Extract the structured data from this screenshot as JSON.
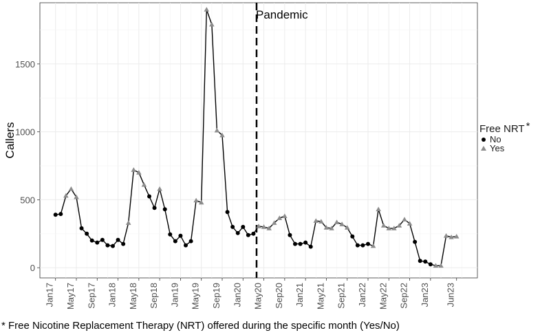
{
  "chart_data": {
    "type": "line",
    "title": "",
    "xlabel": "",
    "ylabel": "Callers",
    "ylim": [
      -75,
      1950
    ],
    "yticks": [
      0,
      500,
      1000,
      1500
    ],
    "x_ticks": [
      "Jan17",
      "May17",
      "Sep17",
      "Jan18",
      "May18",
      "Sep18",
      "Jan19",
      "May19",
      "Sep19",
      "Jan20",
      "May20",
      "Sep20",
      "Jan21",
      "May21",
      "Sep21",
      "Jan22",
      "May22",
      "Sep22",
      "Jan23",
      "Jun23"
    ],
    "x_tick_months": [
      0,
      4,
      8,
      12,
      16,
      20,
      24,
      28,
      32,
      36,
      40,
      44,
      48,
      52,
      56,
      60,
      64,
      68,
      72,
      77
    ],
    "x_range_months": [
      -3,
      81
    ],
    "grid": true,
    "months": [
      "Jan17",
      "Feb17",
      "Mar17",
      "Apr17",
      "May17",
      "Jun17",
      "Jul17",
      "Aug17",
      "Sep17",
      "Oct17",
      "Nov17",
      "Dec17",
      "Jan18",
      "Feb18",
      "Mar18",
      "Apr18",
      "May18",
      "Jun18",
      "Jul18",
      "Aug18",
      "Sep18",
      "Oct18",
      "Nov18",
      "Dec18",
      "Jan19",
      "Feb19",
      "Mar19",
      "Apr19",
      "May19",
      "Jun19",
      "Jul19",
      "Aug19",
      "Sep19",
      "Oct19",
      "Nov19",
      "Dec19",
      "Jan20",
      "Feb20",
      "Mar20",
      "Apr20",
      "May20",
      "Jun20",
      "Jul20",
      "Aug20",
      "Sep20",
      "Oct20",
      "Nov20",
      "Dec20",
      "Jan21",
      "Feb21",
      "Mar21",
      "Apr21",
      "May21",
      "Jun21",
      "Jul21",
      "Aug21",
      "Sep21",
      "Oct21",
      "Nov21",
      "Dec21",
      "Jan22",
      "Feb22",
      "Mar22",
      "Apr22",
      "May22",
      "Jun22",
      "Jul22",
      "Aug22",
      "Sep22",
      "Oct22",
      "Nov22",
      "Dec22",
      "Jan23",
      "Feb23",
      "Mar23",
      "Apr23",
      "May23",
      "Jun23"
    ],
    "callers": [
      390,
      395,
      530,
      580,
      520,
      290,
      250,
      200,
      185,
      205,
      165,
      160,
      205,
      175,
      330,
      720,
      700,
      610,
      525,
      440,
      580,
      430,
      245,
      195,
      235,
      165,
      195,
      495,
      480,
      1900,
      1790,
      1010,
      975,
      410,
      300,
      255,
      300,
      240,
      250,
      305,
      300,
      290,
      330,
      365,
      380,
      240,
      175,
      175,
      185,
      155,
      345,
      340,
      295,
      290,
      335,
      320,
      295,
      230,
      165,
      165,
      175,
      160,
      430,
      310,
      290,
      290,
      310,
      355,
      325,
      190,
      50,
      45,
      25,
      15,
      15,
      235,
      225,
      230
    ],
    "free_nrt": [
      "No",
      "No",
      "Yes",
      "Yes",
      "Yes",
      "No",
      "No",
      "No",
      "No",
      "No",
      "No",
      "No",
      "No",
      "No",
      "Yes",
      "Yes",
      "Yes",
      "Yes",
      "No",
      "No",
      "Yes",
      "No",
      "No",
      "No",
      "No",
      "No",
      "No",
      "Yes",
      "Yes",
      "Yes",
      "Yes",
      "Yes",
      "Yes",
      "No",
      "No",
      "No",
      "No",
      "No",
      "No",
      "Yes",
      "Yes",
      "Yes",
      "Yes",
      "Yes",
      "Yes",
      "No",
      "No",
      "No",
      "No",
      "No",
      "Yes",
      "Yes",
      "Yes",
      "Yes",
      "Yes",
      "Yes",
      "Yes",
      "No",
      "No",
      "No",
      "No",
      "Yes",
      "Yes",
      "Yes",
      "Yes",
      "Yes",
      "Yes",
      "Yes",
      "Yes",
      "No",
      "No",
      "No",
      "No",
      "Yes",
      "Yes",
      "Yes",
      "Yes",
      "Yes"
    ],
    "series": [
      {
        "name": "No",
        "marker": "circle",
        "color": "#000000"
      },
      {
        "name": "Yes",
        "marker": "triangle",
        "color": "#8c8c8c"
      }
    ],
    "line_color": "#000000",
    "annotation": {
      "label": "Pandemic",
      "x_month": 38.6
    },
    "legend": {
      "title": "Free NRT",
      "marker": "*",
      "placement": "right"
    }
  },
  "footnote": "* Free Nicotine Replacement Therapy (NRT) offered during the specific month (Yes/No)"
}
